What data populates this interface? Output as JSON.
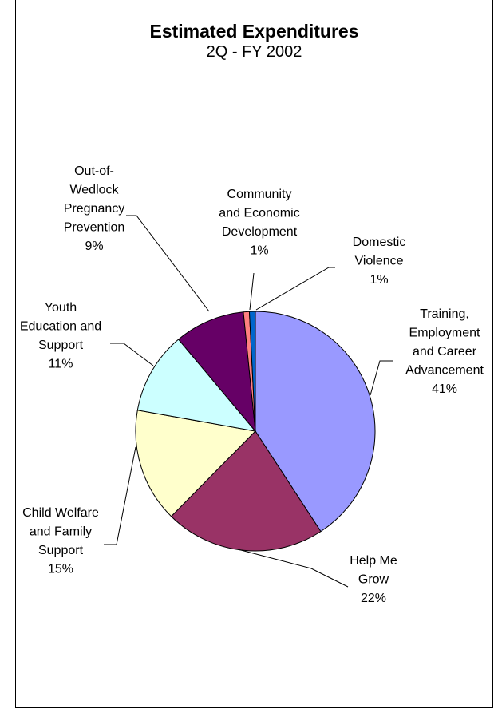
{
  "chart_data": {
    "type": "pie",
    "title": "Estimated Expenditures",
    "subtitle": "2Q - FY 2002",
    "slices": [
      {
        "label": "Training, Employment and Career Advancement",
        "pct_label": "41%",
        "value": 40.8,
        "color": "#9999ff"
      },
      {
        "label": "Help Me Grow",
        "pct_label": "22%",
        "value": 21.6,
        "color": "#993366"
      },
      {
        "label": "Child Welfare and Family Support",
        "pct_label": "15%",
        "value": 15.4,
        "color": "#ffffcc"
      },
      {
        "label": "Youth Education and Support",
        "pct_label": "11%",
        "value": 11.1,
        "color": "#ccffff"
      },
      {
        "label": "Out-of-Wedlock Pregnancy Prevention",
        "pct_label": "9%",
        "value": 9.5,
        "color": "#660066"
      },
      {
        "label": "Community and Economic Development",
        "pct_label": "1%",
        "value": 0.8,
        "color": "#ff8080"
      },
      {
        "label": "Domestic Violence",
        "pct_label": "1%",
        "value": 0.8,
        "color": "#0066cc"
      }
    ]
  }
}
